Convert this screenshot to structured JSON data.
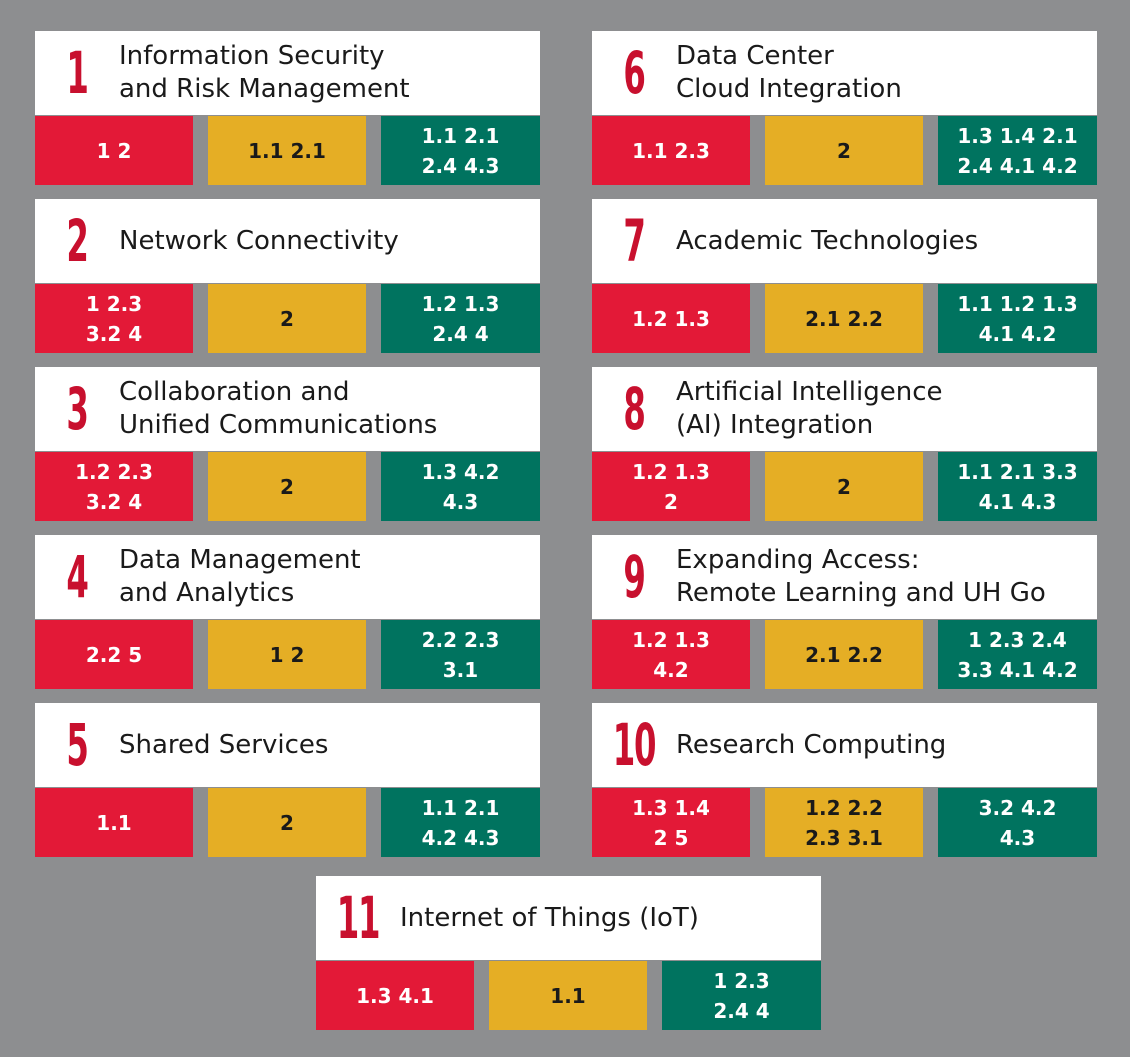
{
  "colors": {
    "background": "#8d8e90",
    "red": "#e31937",
    "yellow": "#e5ae25",
    "green": "#00735f",
    "number": "#c8102e"
  },
  "cards": [
    {
      "number": "1",
      "title": "Information Security\nand Risk Management",
      "red": "1   2",
      "yellow": "1.1   2.1",
      "green": "1.1   2.1\n2.4   4.3"
    },
    {
      "number": "2",
      "title": "Network Connectivity",
      "red": "1   2.3\n3.2   4",
      "yellow": "2",
      "green": "1.2   1.3\n2.4   4"
    },
    {
      "number": "3",
      "title": "Collaboration and\nUnified Communications",
      "red": "1.2   2.3\n3.2   4",
      "yellow": "2",
      "green": "1.3   4.2\n4.3"
    },
    {
      "number": "4",
      "title": "Data Management\nand Analytics",
      "red": "2.2   5",
      "yellow": "1   2",
      "green": "2.2   2.3\n3.1"
    },
    {
      "number": "5",
      "title": "Shared Services",
      "red": "1.1",
      "yellow": "2",
      "green": "1.1   2.1\n4.2   4.3"
    },
    {
      "number": "6",
      "title": "Data Center\nCloud Integration",
      "red": "1.1   2.3",
      "yellow": "2",
      "green": "1.3   1.4   2.1\n2.4   4.1   4.2"
    },
    {
      "number": "7",
      "title": "Academic Technologies",
      "red": "1.2   1.3",
      "yellow": "2.1   2.2",
      "green": "1.1   1.2   1.3\n4.1   4.2"
    },
    {
      "number": "8",
      "title": "Artificial Intelligence\n(AI) Integration",
      "red": "1.2   1.3\n2",
      "yellow": "2",
      "green": "1.1   2.1   3.3\n4.1   4.3"
    },
    {
      "number": "9",
      "title": "Expanding Access:\nRemote Learning and UH Go",
      "red": "1.2   1.3\n4.2",
      "yellow": "2.1   2.2",
      "green": "1   2.3   2.4\n3.3   4.1   4.2"
    },
    {
      "number": "10",
      "title": "Research Computing",
      "red": "1.3   1.4\n2   5",
      "yellow": "1.2   2.2\n2.3   3.1",
      "green": "3.2   4.2\n4.3"
    },
    {
      "number": "11",
      "title": "Internet of Things (IoT)",
      "red": "1.3   4.1",
      "yellow": "1.1",
      "green": "1   2.3\n2.4   4"
    }
  ]
}
